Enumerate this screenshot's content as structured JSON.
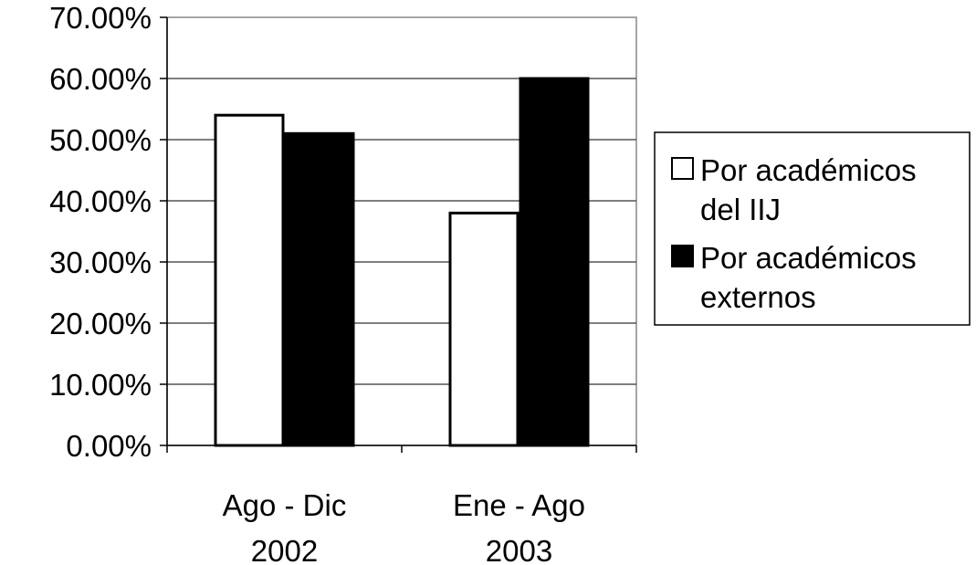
{
  "chart_data": {
    "type": "bar",
    "categories": [
      [
        "Ago - Dic",
        "2002"
      ],
      [
        "Ene - Ago",
        "2003"
      ]
    ],
    "series": [
      {
        "name": "Por académicos del IIJ",
        "legend_lines": [
          "Por académicos",
          "del IIJ"
        ],
        "values": [
          0.54,
          0.38
        ],
        "color": "#ffffff"
      },
      {
        "name": "Por académicos externos",
        "legend_lines": [
          "Por académicos",
          "externos"
        ],
        "values": [
          0.51,
          0.6
        ],
        "color": "#000000"
      }
    ],
    "ylim": [
      0,
      0.7
    ],
    "yticks": [
      {
        "value": 0.7,
        "label": "70.00%"
      },
      {
        "value": 0.6,
        "label": "60.00%"
      },
      {
        "value": 0.5,
        "label": "50.00%"
      },
      {
        "value": 0.4,
        "label": "40.00%"
      },
      {
        "value": 0.3,
        "label": "30.00%"
      },
      {
        "value": 0.2,
        "label": "20.00%"
      },
      {
        "value": 0.1,
        "label": "10.00%"
      },
      {
        "value": 0.0,
        "label": "0.00%"
      }
    ],
    "title": "",
    "xlabel": "",
    "ylabel": "",
    "grid": true,
    "legend_position": "right"
  }
}
